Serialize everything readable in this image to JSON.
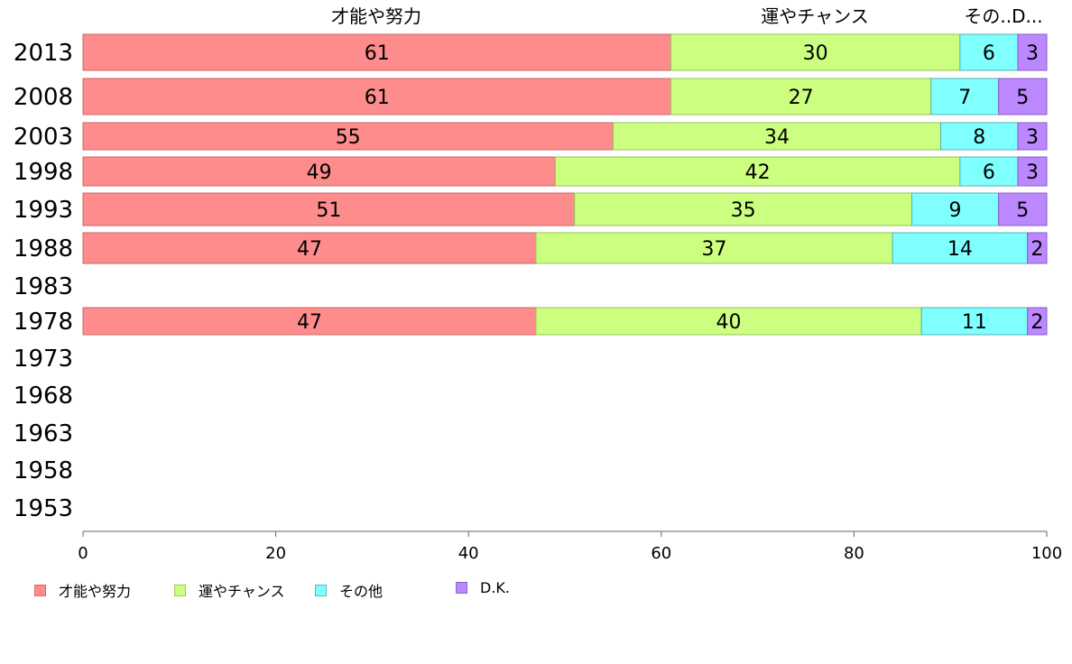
{
  "chart_data": {
    "type": "bar",
    "orientation": "horizontal",
    "stacked": true,
    "categories": [
      "2013",
      "2008",
      "2003",
      "1998",
      "1993",
      "1988",
      "1983",
      "1978",
      "1973",
      "1968",
      "1963",
      "1958",
      "1953"
    ],
    "series": [
      {
        "name": "才能や努力",
        "color": "#FF8C8C",
        "values": [
          61,
          61,
          55,
          49,
          51,
          47,
          null,
          47,
          null,
          null,
          null,
          null,
          null
        ]
      },
      {
        "name": "運やチャンス",
        "color": "#CCFF80",
        "values": [
          30,
          27,
          34,
          42,
          35,
          37,
          null,
          40,
          null,
          null,
          null,
          null,
          null
        ]
      },
      {
        "name": "その他",
        "color": "#80FFFF",
        "values": [
          6,
          7,
          8,
          6,
          9,
          14,
          null,
          11,
          null,
          null,
          null,
          null,
          null
        ]
      },
      {
        "name": "D.K.",
        "color": "#BB88FF",
        "values": [
          3,
          5,
          3,
          3,
          5,
          2,
          null,
          2,
          null,
          null,
          null,
          null,
          null
        ]
      }
    ],
    "top_labels": [
      "才能や努力",
      "運やチャンス",
      "その..D..."
    ],
    "xlim": [
      0,
      100
    ],
    "xticks": [
      "0",
      "20",
      "40",
      "60",
      "80",
      "100"
    ],
    "grid": false,
    "legend_position": "bottom-left"
  }
}
